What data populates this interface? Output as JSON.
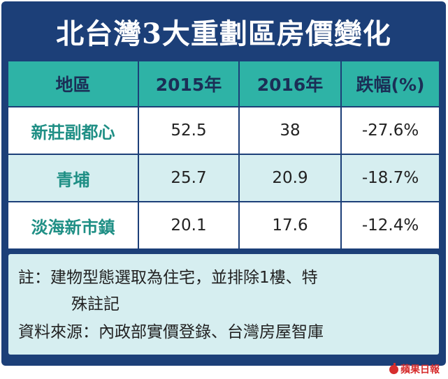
{
  "title": "北台灣3大重劃區房價變化",
  "table": {
    "headers": [
      "地區",
      "2015年",
      "2016年",
      "跌幅(%)"
    ],
    "rows": [
      {
        "area": "新莊副都心",
        "y2015": "52.5",
        "y2016": "38",
        "change": "-27.6%"
      },
      {
        "area": "青埔",
        "y2015": "25.7",
        "y2016": "20.9",
        "change": "-18.7%"
      },
      {
        "area": "淡海新市鎮",
        "y2015": "20.1",
        "y2016": "17.6",
        "change": "-12.4%"
      }
    ]
  },
  "note": {
    "line1": "註：建物型態選取為住宅，並排除1樓、特",
    "line2": "殊註記",
    "line3": "資料來源：內政部實價登錄、台灣房屋智庫"
  },
  "logo": "蘋果日報",
  "colors": {
    "navy": "#1c3f78",
    "teal": "#2eb3a6",
    "light_teal": "#d6eef0",
    "area_text": "#1f8f85",
    "logo_red": "#d62d2d"
  }
}
